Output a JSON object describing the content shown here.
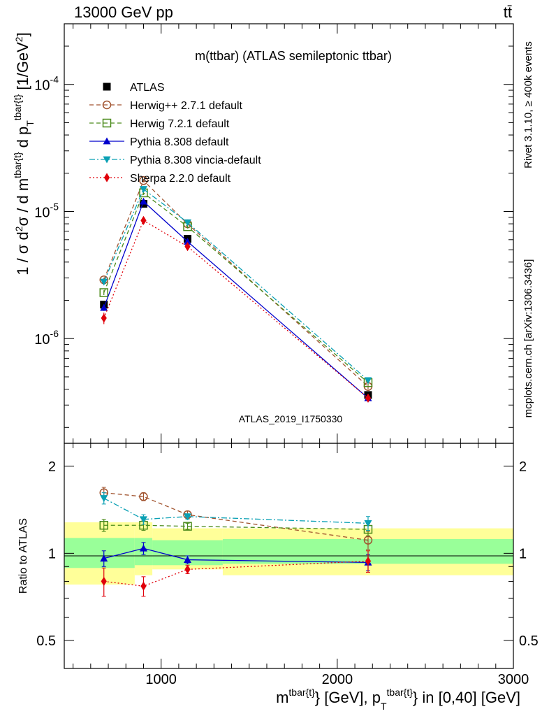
{
  "header": {
    "left_label": "13000 GeV pp",
    "right_label": "tt̄"
  },
  "side_labels": {
    "rivet": "Rivet 3.1.10, ≥ 400k events",
    "mcplots": "mcplots.cern.ch [arXiv:1306.3436]"
  },
  "colors": {
    "atlas": "#000000",
    "herwigpp": "#a0522d",
    "herwig7": "#4a8a1a",
    "pythia": "#0000cc",
    "vincia": "#0aa0b4",
    "sherpa": "#e0000a",
    "band_inner": "#99ff99",
    "band_outer": "#ffff99"
  },
  "chart_data": [
    {
      "type": "line",
      "panel": "main",
      "title": "m(ttbar) (ATLAS semileptonic ttbar)",
      "ylabel": "1 / σ d²σ / d m^{tbar{t}} d p_T^{tbar{t}} [1/GeV²]",
      "watermark": "ATLAS_2019_I1750330",
      "yscale": "log",
      "xlim": [
        450,
        3000
      ],
      "ylim": [
        1.5e-07,
        0.0003
      ],
      "ytick_labels": [
        "10^{-6}",
        "10^{-5}",
        "10^{-4}"
      ],
      "legend_position": "top-left",
      "series": [
        {
          "name": "ATLAS",
          "style": "data",
          "x": [
            675,
            900,
            1150,
            2175
          ],
          "y": [
            1.85e-06,
            1.15e-05,
            6.1e-06,
            3.6e-07
          ],
          "xerr": [
            [
              225,
              25
            ],
            [
              25,
              100
            ],
            [
              100,
              825
            ],
            [
              825,
              825
            ]
          ],
          "yerr": [
            1.2e-07,
            5e-07,
            3e-07,
            2e-08
          ]
        },
        {
          "name": "Herwig++ 2.7.1 default",
          "style": "dashed",
          "marker": "circle",
          "x": [
            675,
            900,
            1150,
            2175
          ],
          "y": [
            2.9e-06,
            1.75e-05,
            8e-06,
            4.2e-07
          ],
          "yerr": [
            1.2e-07,
            5e-07,
            2.5e-07,
            2e-08
          ]
        },
        {
          "name": "Herwig 7.2.1 default",
          "style": "dashed",
          "marker": "square",
          "x": [
            675,
            900,
            1150,
            2175
          ],
          "y": [
            2.3e-06,
            1.4e-05,
            7.6e-06,
            4.5e-07
          ],
          "yerr": [
            1e-07,
            5e-07,
            2.5e-07,
            2e-08
          ]
        },
        {
          "name": "Pythia 8.308 default",
          "style": "solid",
          "marker": "triangle-up",
          "x": [
            675,
            900,
            1150,
            2175
          ],
          "y": [
            1.75e-06,
            1.2e-05,
            5.8e-06,
            3.4e-07
          ],
          "yerr": [
            1e-07,
            5e-07,
            2e-07,
            2e-08
          ]
        },
        {
          "name": "Pythia 8.308 vincia-default",
          "style": "dashdot",
          "marker": "triangle-down",
          "x": [
            675,
            900,
            1150,
            2175
          ],
          "y": [
            2.8e-06,
            1.5e-05,
            8.2e-06,
            4.7e-07
          ],
          "yerr": [
            1.2e-07,
            5e-07,
            2.5e-07,
            2e-08
          ]
        },
        {
          "name": "Sherpa 2.2.0 default",
          "style": "dotted",
          "marker": "diamond",
          "x": [
            675,
            900,
            1150,
            2175
          ],
          "y": [
            1.45e-06,
            8.5e-06,
            5.3e-06,
            3.4e-07
          ],
          "yerr": [
            1.5e-07,
            6e-07,
            2e-07,
            2e-08
          ]
        }
      ]
    },
    {
      "type": "line",
      "panel": "ratio",
      "ylabel": "Ratio to ATLAS",
      "xlabel": "m^{tbar{t}} [GeV], p_T^{tbar{t}} in [0,40] [GeV]",
      "xlim": [
        450,
        3000
      ],
      "ylim": [
        0.4,
        2.4
      ],
      "xtick_labels": [
        "1000",
        "2000",
        "3000"
      ],
      "ytick_labels": [
        "0.5",
        "1",
        "2"
      ],
      "reference_line": 1,
      "bands": [
        {
          "x_low": 450,
          "x_high": 850,
          "inner": [
            0.89,
            1.13
          ],
          "outer": [
            0.78,
            1.28
          ]
        },
        {
          "x_low": 850,
          "x_high": 950,
          "inner": [
            0.91,
            1.13
          ],
          "outer": [
            0.84,
            1.28
          ]
        },
        {
          "x_low": 950,
          "x_high": 1350,
          "inner": [
            0.91,
            1.11
          ],
          "outer": [
            0.88,
            1.22
          ]
        },
        {
          "x_low": 1350,
          "x_high": 3000,
          "inner": [
            0.92,
            1.12
          ],
          "outer": [
            0.84,
            1.22
          ]
        }
      ],
      "series": [
        {
          "name": "Herwig++ 2.7.1 default",
          "style": "dashed",
          "marker": "circle",
          "x": [
            675,
            900,
            1150,
            2175
          ],
          "y": [
            1.62,
            1.57,
            1.36,
            1.11
          ],
          "yerr": [
            0.07,
            0.05,
            0.04,
            0.08
          ]
        },
        {
          "name": "Herwig 7.2.1 default",
          "style": "dashed",
          "marker": "square",
          "x": [
            675,
            900,
            1150,
            2175
          ],
          "y": [
            1.25,
            1.25,
            1.24,
            1.21
          ],
          "yerr": [
            0.06,
            0.05,
            0.03,
            0.06
          ]
        },
        {
          "name": "Pythia 8.308 default",
          "style": "solid",
          "marker": "triangle-up",
          "x": [
            675,
            900,
            1150,
            2175
          ],
          "y": [
            0.96,
            1.04,
            0.95,
            0.93
          ],
          "yerr": [
            0.06,
            0.05,
            0.03,
            0.06
          ]
        },
        {
          "name": "Pythia 8.308 vincia-default",
          "style": "dashdot",
          "marker": "triangle-down",
          "x": [
            675,
            900,
            1150,
            2175
          ],
          "y": [
            1.55,
            1.31,
            1.34,
            1.27
          ],
          "yerr": [
            0.07,
            0.05,
            0.03,
            0.07
          ]
        },
        {
          "name": "Sherpa 2.2.0 default",
          "style": "dotted",
          "marker": "diamond",
          "x": [
            675,
            900,
            1150,
            2175
          ],
          "y": [
            0.8,
            0.77,
            0.88,
            0.94
          ],
          "yerr": [
            0.09,
            0.06,
            0.03,
            0.08
          ]
        }
      ]
    }
  ]
}
